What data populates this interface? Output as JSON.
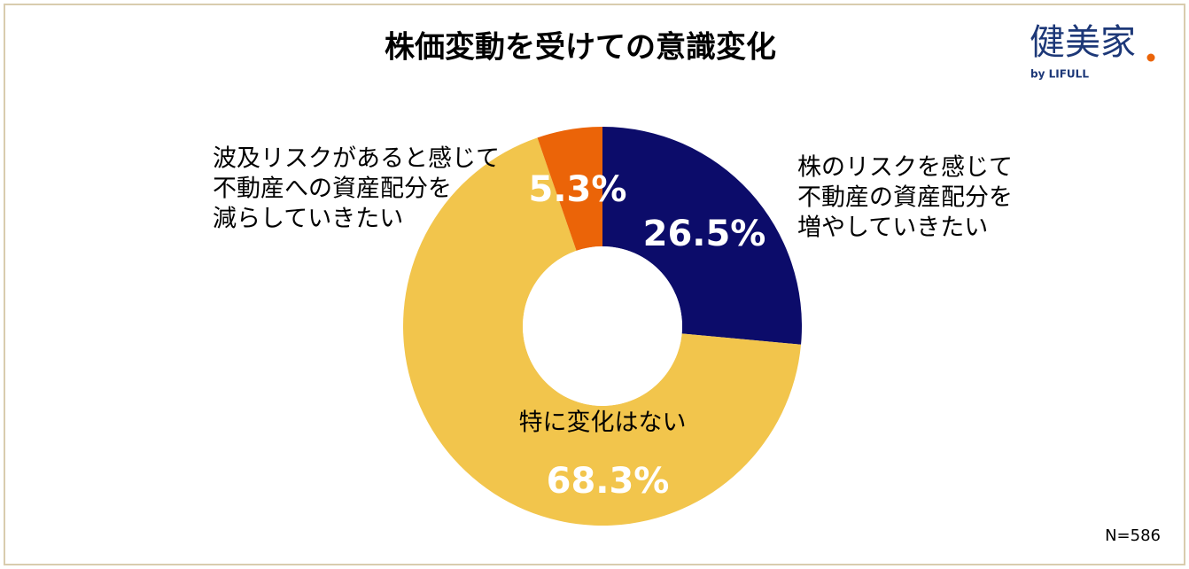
{
  "chart_data": {
    "type": "pie",
    "donut": true,
    "title": "株価変動を受けての意識変化",
    "categories": [
      [
        "株のリスクを感じて",
        "不動産の資産配分を",
        "増やしていきたい"
      ],
      [
        "特に変化はない"
      ],
      [
        "波及リスクがあると感じて",
        "不動産への資産配分を",
        "減らしていきたい"
      ]
    ],
    "values": [
      26.5,
      68.3,
      5.3
    ],
    "value_labels": [
      "26.5%",
      "68.3%",
      "5.3%"
    ],
    "colors": [
      "#0c0c6a",
      "#f2c54c",
      "#eb6408"
    ],
    "note": "N=586",
    "logo": {
      "name": "健美家",
      "sub": "by LIFULL"
    }
  }
}
